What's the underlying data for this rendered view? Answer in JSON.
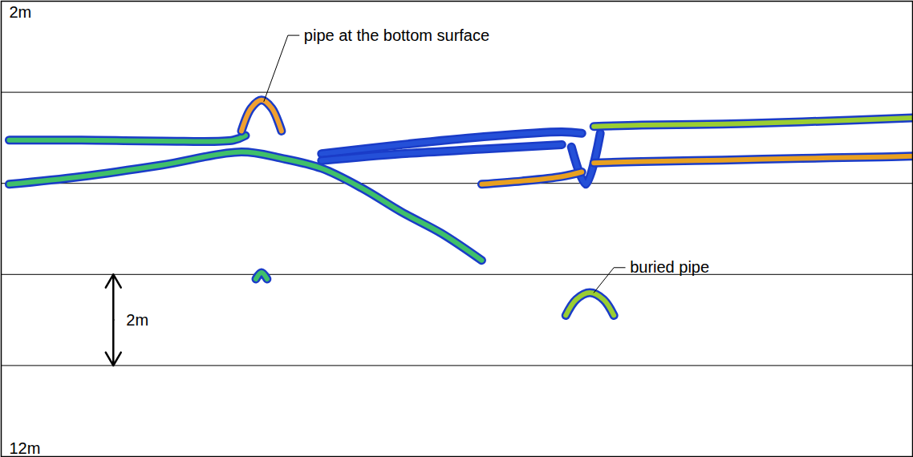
{
  "chart_data": {
    "type": "echogram",
    "xlim": [
      0,
      1138
    ],
    "ylim": [
      2,
      12
    ],
    "yticks": [
      {
        "value": 2,
        "label": "2m"
      },
      {
        "value": 12,
        "label": "12m"
      }
    ],
    "grid": true,
    "grid_lines": [
      4,
      6,
      8,
      10
    ],
    "tick_labels": "y",
    "series": [
      {
        "type": "line",
        "color": "#3fbf6a",
        "x": [
          10,
          100,
          200,
          290,
          305
        ],
        "values": [
          5.05,
          5.05,
          5.07,
          5.05,
          4.95
        ]
      },
      {
        "type": "line",
        "color": "#f0a030",
        "x": [
          300,
          312,
          325,
          338,
          350
        ],
        "values": [
          4.85,
          4.35,
          4.17,
          4.35,
          4.85
        ]
      },
      {
        "type": "line",
        "color": "#3fbf6a",
        "x": [
          10,
          100,
          200,
          300,
          350,
          400,
          450,
          500,
          550,
          600
        ],
        "values": [
          6.02,
          5.85,
          5.6,
          5.31,
          5.45,
          5.67,
          6.1,
          6.63,
          7.1,
          7.69
        ]
      },
      {
        "type": "line",
        "color": "#2450d8",
        "x": [
          400,
          500,
          600,
          700,
          725
        ],
        "values": [
          5.35,
          5.15,
          4.98,
          4.87,
          4.9
        ]
      },
      {
        "type": "line",
        "color": "#2450d8",
        "x": [
          400,
          500,
          600,
          700
        ],
        "values": [
          5.5,
          5.35,
          5.25,
          5.15
        ]
      },
      {
        "type": "line",
        "color": "#2450d8",
        "x": [
          712,
          730,
          748
        ],
        "values": [
          5.2,
          6.02,
          4.9
        ]
      },
      {
        "type": "line",
        "color": "#9acd32",
        "x": [
          740,
          800,
          900,
          1000,
          1138
        ],
        "values": [
          4.75,
          4.72,
          4.7,
          4.65,
          4.56
        ]
      },
      {
        "type": "line",
        "color": "#e8a020",
        "x": [
          740,
          800,
          900,
          1000,
          1100,
          1138
        ],
        "values": [
          5.55,
          5.52,
          5.49,
          5.45,
          5.42,
          5.4
        ]
      },
      {
        "type": "line",
        "color": "#e8a020",
        "x": [
          600,
          650,
          700,
          725
        ],
        "values": [
          6.02,
          5.95,
          5.85,
          5.75
        ]
      },
      {
        "type": "line",
        "color": "#3fbf6a",
        "x": [
          318,
          325,
          332
        ],
        "values": [
          8.1,
          7.96,
          8.1
        ]
      },
      {
        "type": "line",
        "color": "#9acd32",
        "x": [
          705,
          718,
          735,
          752,
          765
        ],
        "values": [
          8.9,
          8.55,
          8.4,
          8.55,
          8.9
        ]
      }
    ],
    "annotations": [
      {
        "text": "pipe at the bottom surface",
        "x": 328,
        "y": 4.2
      },
      {
        "text": "buried pipe",
        "x": 740,
        "y": 8.4
      }
    ],
    "scale_bar": {
      "text": "2m",
      "x": 140,
      "y1": 8,
      "y2": 10
    }
  }
}
